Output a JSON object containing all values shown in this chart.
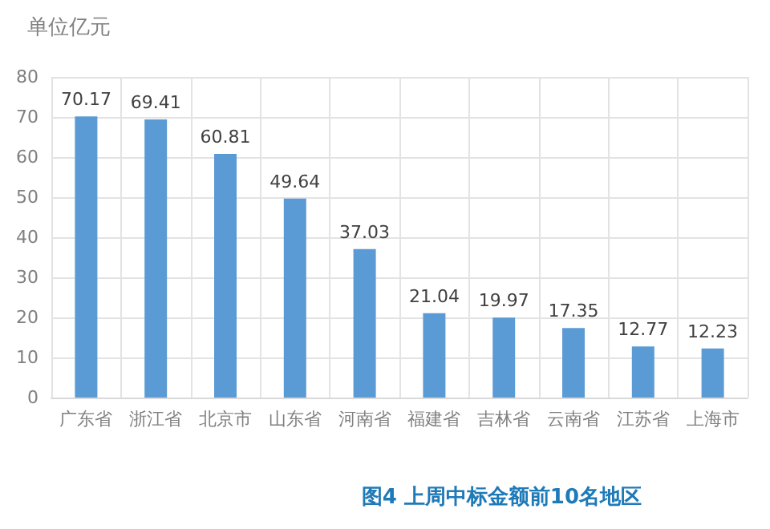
{
  "chart_data": {
    "type": "bar",
    "title": "图4 上周中标金额前10名地区",
    "ylabel": "单位亿元",
    "categories": [
      "广东省",
      "浙江省",
      "北京市",
      "山东省",
      "河南省",
      "福建省",
      "吉林省",
      "云南省",
      "江苏省",
      "上海市"
    ],
    "values": [
      70.17,
      69.41,
      60.81,
      49.64,
      37.03,
      21.04,
      19.97,
      17.35,
      12.77,
      12.23
    ],
    "color": "#5b9bd5",
    "ylim": [
      0,
      80
    ],
    "yticks": [
      0,
      10,
      20,
      30,
      40,
      50,
      60,
      70,
      80
    ],
    "grid": true,
    "data_labels": true
  }
}
